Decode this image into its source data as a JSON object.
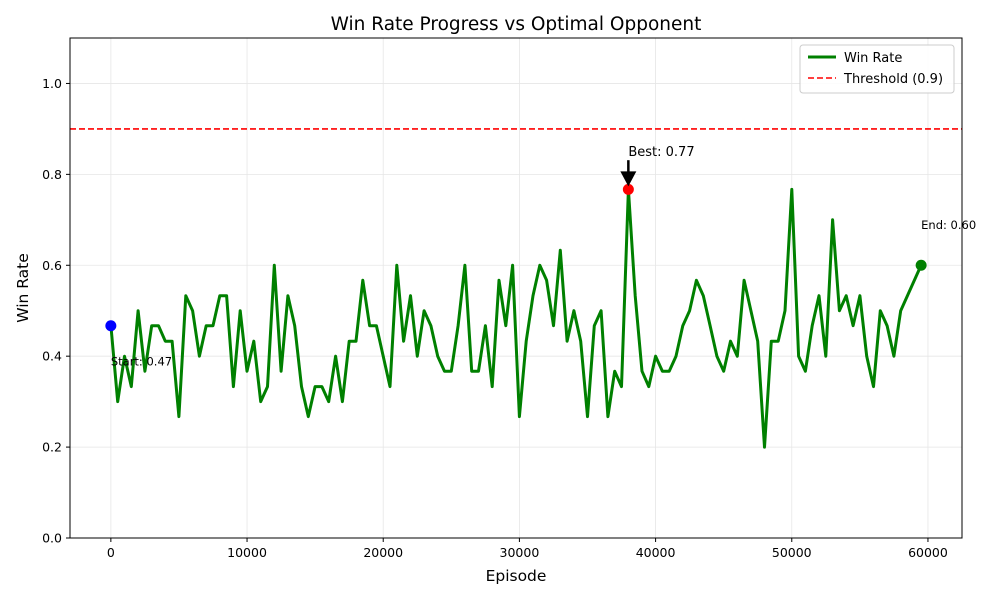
{
  "chart_data": {
    "type": "line",
    "title": "Win Rate Progress vs Optimal Opponent",
    "xlabel": "Episode",
    "ylabel": "Win Rate",
    "xlim": [
      -3000,
      62500
    ],
    "ylim": [
      0,
      1.1
    ],
    "x_ticks": [
      0,
      10000,
      20000,
      30000,
      40000,
      50000,
      60000
    ],
    "y_ticks": [
      "0.0",
      "0.2",
      "0.4",
      "0.6",
      "0.8",
      "1.0"
    ],
    "grid": true,
    "legend_position": "top-right",
    "series": [
      {
        "name": "Win Rate",
        "color": "#008000",
        "style": "solid",
        "x": [
          0,
          500,
          1000,
          1500,
          2000,
          2500,
          3000,
          3500,
          4000,
          4500,
          5000,
          5500,
          6000,
          6500,
          7000,
          7500,
          8000,
          8500,
          9000,
          9500,
          10000,
          10500,
          11000,
          11500,
          12000,
          12500,
          13000,
          13500,
          14000,
          14500,
          15000,
          15500,
          16000,
          16500,
          17000,
          17500,
          18000,
          18500,
          19000,
          19500,
          20000,
          20500,
          21000,
          21500,
          22000,
          22500,
          23000,
          23500,
          24000,
          24500,
          25000,
          25500,
          26000,
          26500,
          27000,
          27500,
          28000,
          28500,
          29000,
          29500,
          30000,
          30500,
          31000,
          31500,
          32000,
          32500,
          33000,
          33500,
          34000,
          34500,
          35000,
          35500,
          36000,
          36500,
          37000,
          37500,
          38000,
          38500,
          39000,
          39500,
          40000,
          40500,
          41000,
          41500,
          42000,
          42500,
          43000,
          43500,
          44000,
          44500,
          45000,
          45500,
          46000,
          46500,
          47000,
          47500,
          48000,
          48500,
          49000,
          49500,
          50000,
          50500,
          51000,
          51500,
          52000,
          52500,
          53000,
          53500,
          54000,
          54500,
          55000,
          55500,
          56000,
          56500,
          57000,
          57500,
          58000,
          59500
        ],
        "y": [
          0.467,
          0.3,
          0.4,
          0.333,
          0.5,
          0.367,
          0.467,
          0.467,
          0.433,
          0.433,
          0.267,
          0.533,
          0.5,
          0.4,
          0.467,
          0.467,
          0.533,
          0.533,
          0.333,
          0.5,
          0.367,
          0.433,
          0.3,
          0.333,
          0.6,
          0.367,
          0.533,
          0.467,
          0.333,
          0.267,
          0.333,
          0.333,
          0.3,
          0.4,
          0.3,
          0.433,
          0.433,
          0.567,
          0.467,
          0.467,
          0.4,
          0.333,
          0.6,
          0.433,
          0.533,
          0.4,
          0.5,
          0.467,
          0.4,
          0.367,
          0.367,
          0.467,
          0.6,
          0.367,
          0.367,
          0.467,
          0.333,
          0.567,
          0.467,
          0.6,
          0.267,
          0.433,
          0.533,
          0.6,
          0.567,
          0.467,
          0.633,
          0.433,
          0.5,
          0.433,
          0.267,
          0.467,
          0.5,
          0.267,
          0.367,
          0.333,
          0.767,
          0.533,
          0.367,
          0.333,
          0.4,
          0.367,
          0.367,
          0.4,
          0.467,
          0.5,
          0.567,
          0.533,
          0.467,
          0.4,
          0.367,
          0.433,
          0.4,
          0.567,
          0.5,
          0.433,
          0.2,
          0.433,
          0.433,
          0.5,
          0.767,
          0.4,
          0.367,
          0.467,
          0.533,
          0.4,
          0.7,
          0.5,
          0.533,
          0.467,
          0.533,
          0.4,
          0.333,
          0.5,
          0.467,
          0.4,
          0.5,
          0.6
        ]
      },
      {
        "name": "Threshold (0.9)",
        "color": "#ff0000",
        "style": "dashed",
        "y": 0.9
      }
    ],
    "markers": [
      {
        "x": 0,
        "y": 0.467,
        "color": "#0000ff"
      },
      {
        "x": 38000,
        "y": 0.767,
        "color": "#ff0000"
      },
      {
        "x": 59500,
        "y": 0.6,
        "color": "#008000"
      }
    ],
    "annotations": [
      {
        "text": "Start: 0.47",
        "x": 0,
        "y": 0.38,
        "arrow": false
      },
      {
        "text": "Best: 0.77",
        "x": 38000,
        "y": 0.84,
        "arrow": true,
        "arrow_to": [
          38000,
          0.767
        ]
      },
      {
        "text": "End: 0.60",
        "x": 59500,
        "y": 0.68,
        "arrow": false
      }
    ]
  }
}
